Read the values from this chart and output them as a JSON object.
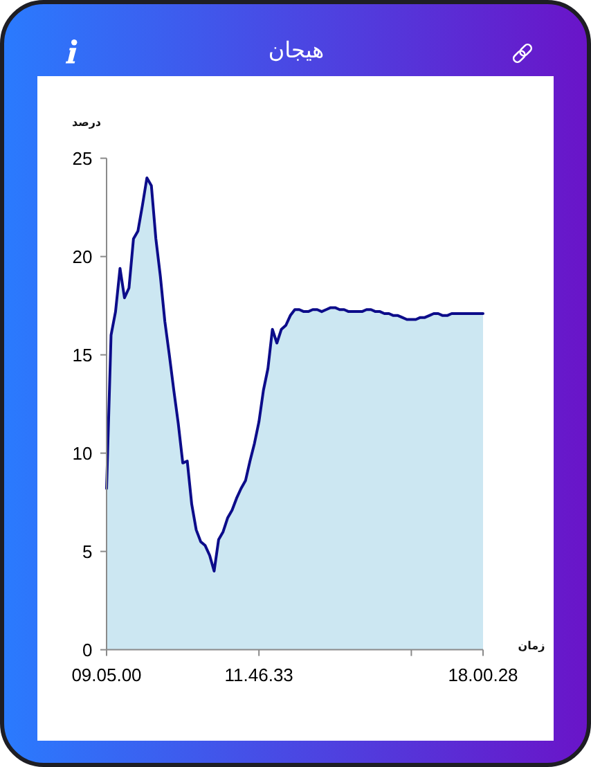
{
  "chart_data": {
    "type": "area",
    "title": "هیجان",
    "ylabel": "درصد",
    "xlabel": "زمان",
    "categories": [
      "09.05.00",
      null,
      null,
      null,
      null,
      null,
      null,
      null,
      null,
      null,
      null,
      null,
      null,
      null,
      null,
      null,
      null,
      null,
      null,
      null,
      null,
      null,
      null,
      null,
      null,
      null,
      null,
      null,
      null,
      null,
      null,
      null,
      null,
      null,
      "11.46.33",
      null,
      null,
      null,
      null,
      null,
      null,
      null,
      null,
      null,
      null,
      null,
      null,
      null,
      null,
      null,
      null,
      null,
      null,
      null,
      null,
      null,
      null,
      null,
      null,
      null,
      null,
      null,
      null,
      null,
      null,
      null,
      null,
      null,
      null,
      null,
      null,
      null,
      null,
      null,
      null,
      null,
      null,
      null,
      null,
      null,
      null,
      null,
      null,
      null,
      "18.00.28"
    ],
    "values": [
      8.2,
      16.0,
      17.2,
      19.4,
      17.9,
      18.4,
      20.9,
      21.3,
      22.6,
      24.0,
      23.6,
      20.9,
      19.0,
      16.7,
      15.0,
      13.2,
      11.5,
      9.5,
      9.6,
      7.4,
      6.1,
      5.5,
      5.3,
      4.8,
      4.0,
      5.6,
      6.0,
      6.7,
      7.1,
      7.7,
      8.2,
      8.6,
      9.6,
      10.5,
      11.6,
      13.2,
      14.3,
      16.3,
      15.6,
      16.3,
      16.5,
      17.0,
      17.3,
      17.3,
      17.2,
      17.2,
      17.3,
      17.3,
      17.2,
      17.3,
      17.4,
      17.4,
      17.3,
      17.3,
      17.2,
      17.2,
      17.2,
      17.2,
      17.3,
      17.3,
      17.2,
      17.2,
      17.1,
      17.1,
      17.0,
      17.0,
      16.9,
      16.8,
      16.8,
      16.8,
      16.9,
      16.9,
      17.0,
      17.1,
      17.1,
      17.0,
      17.0,
      17.1,
      17.1,
      17.1,
      17.1,
      17.1,
      17.1,
      17.1,
      17.1
    ],
    "color": "#cce7f2",
    "ylim": [
      0,
      25
    ],
    "yticks": [
      0,
      5,
      10,
      15,
      20,
      25
    ]
  }
}
